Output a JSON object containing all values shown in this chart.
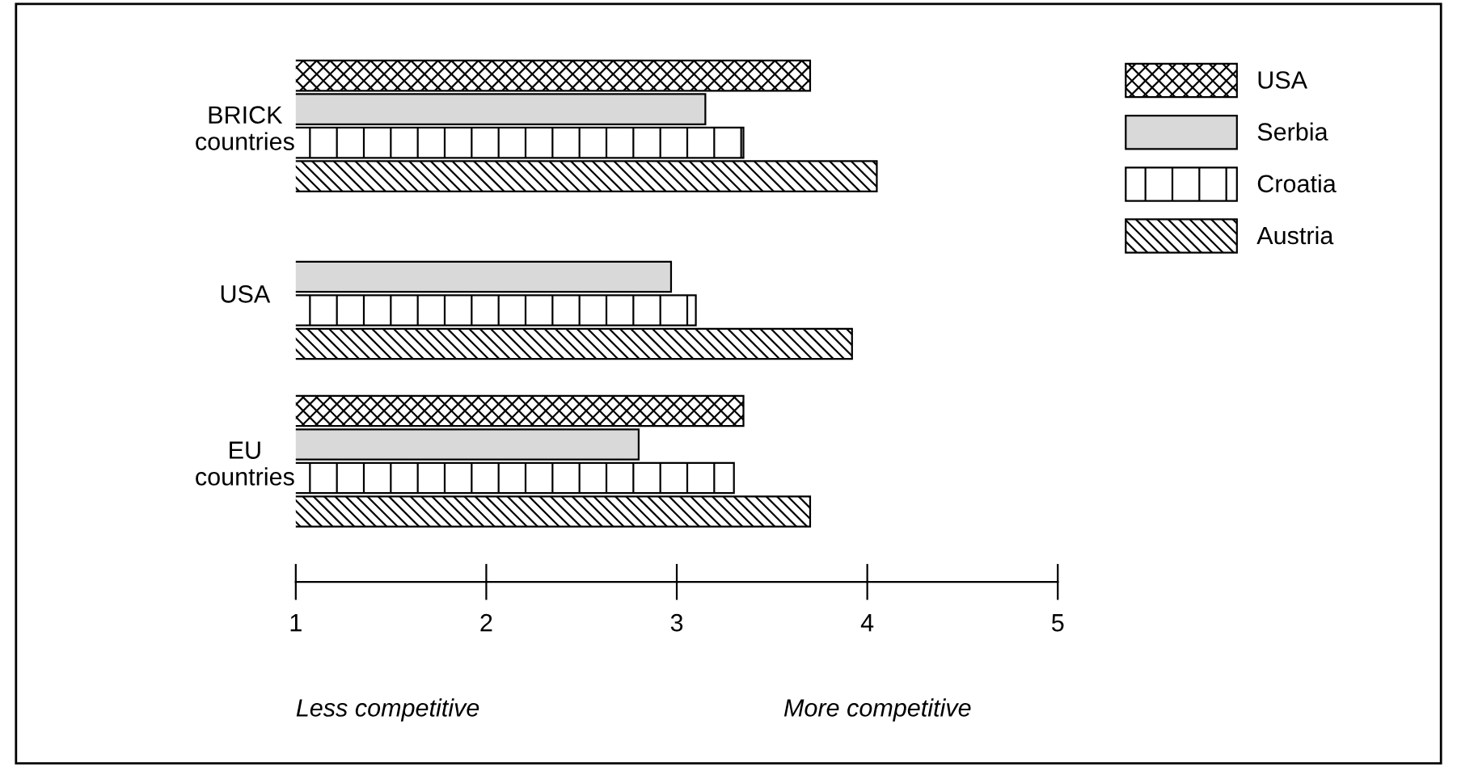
{
  "chart_data": {
    "type": "bar",
    "orientation": "horizontal",
    "categories": [
      "BRICK\ncountries",
      "USA",
      "EU\ncountries"
    ],
    "series": [
      {
        "name": "USA",
        "color": "#000000",
        "values": [
          3.7,
          null,
          3.35
        ]
      },
      {
        "name": "Serbia",
        "color": "#d9d9d9",
        "values": [
          3.15,
          2.97,
          2.8
        ]
      },
      {
        "name": "Croatia",
        "color": "#000000",
        "values": [
          3.35,
          3.1,
          3.3
        ]
      },
      {
        "name": "Austria",
        "color": "#000000",
        "values": [
          4.05,
          3.92,
          3.7
        ]
      }
    ],
    "xlim": [
      1,
      5
    ],
    "xticks": [
      1,
      2,
      3,
      4,
      5
    ],
    "annotations": [
      "Less competitive",
      "More competitive"
    ],
    "legend": "top right",
    "grid": false
  }
}
